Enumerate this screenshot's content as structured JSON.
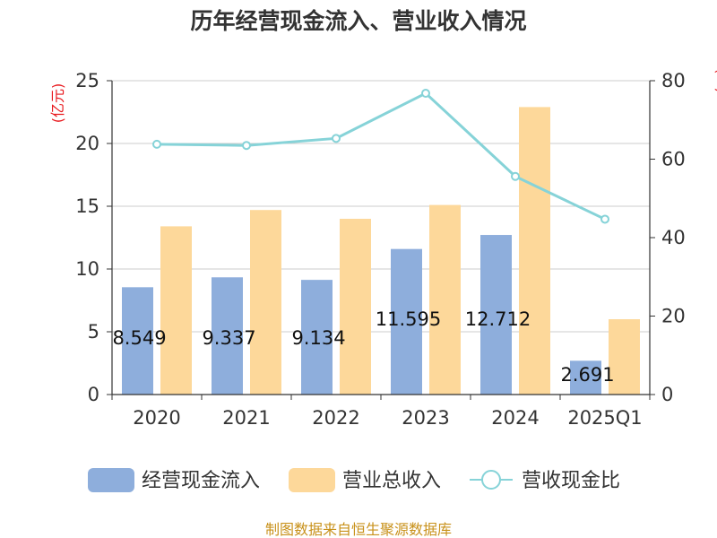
{
  "chart_data": {
    "type": "bar",
    "title": "历年经营现金流入、营业收入情况",
    "categories": [
      "2020",
      "2021",
      "2022",
      "2023",
      "2024",
      "2025Q1"
    ],
    "series": [
      {
        "name": "经营现金流入",
        "kind": "bar",
        "axis": "left",
        "color": "#8eaedc",
        "values": [
          8.549,
          9.337,
          9.134,
          11.595,
          12.712,
          2.691
        ]
      },
      {
        "name": "营业总收入",
        "kind": "bar",
        "axis": "left",
        "color": "#fdd89a",
        "values": [
          13.4,
          14.7,
          14.0,
          15.1,
          22.9,
          6.0
        ]
      },
      {
        "name": "营收现金比",
        "kind": "line",
        "axis": "right",
        "color": "#86d3d8",
        "values": [
          63.8,
          63.5,
          65.3,
          76.8,
          55.6,
          44.7
        ]
      }
    ],
    "data_labels": [
      "8.549",
      "9.337",
      "9.134",
      "11.595",
      "12.712",
      "2.691"
    ],
    "y_left": {
      "label": "(亿元)",
      "min": 0,
      "max": 25,
      "ticks": [
        0,
        5,
        10,
        15,
        20,
        25
      ]
    },
    "y_right": {
      "label": "(%)",
      "min": 0,
      "max": 80,
      "ticks": [
        0,
        20,
        40,
        60,
        80
      ]
    },
    "grid": true,
    "legend": "bottom"
  },
  "source": "制图数据来自恒生聚源数据库"
}
